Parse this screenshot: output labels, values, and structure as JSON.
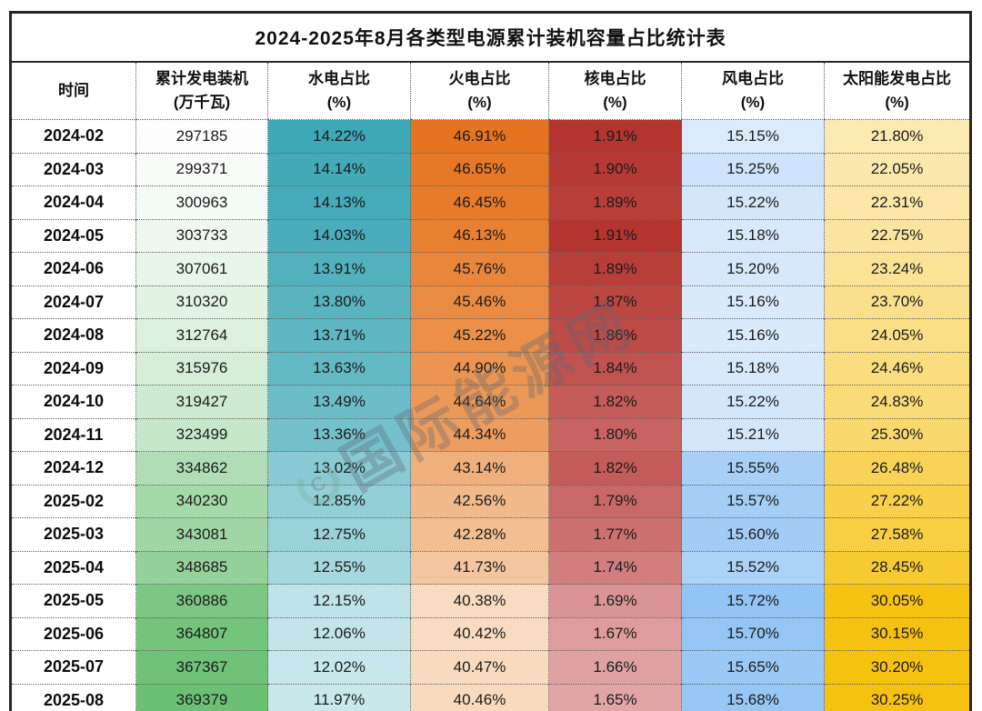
{
  "title": "2024-2025年8月各类型电源累计装机容量占比统计表",
  "watermark": {
    "symbol": "C",
    "text": "国际能源网"
  },
  "columns": [
    {
      "key": "date",
      "label": "时间",
      "sub": ""
    },
    {
      "key": "capacity",
      "label": "累计发电装机",
      "sub": "(万千瓦)"
    },
    {
      "key": "hydro",
      "label": "水电占比",
      "sub": "(%)"
    },
    {
      "key": "thermal",
      "label": "火电占比",
      "sub": "(%)"
    },
    {
      "key": "nuclear",
      "label": "核电占比",
      "sub": "(%)"
    },
    {
      "key": "wind",
      "label": "风电占比",
      "sub": "(%)"
    },
    {
      "key": "solar",
      "label": "太阳能发电占比",
      "sub": "(%)"
    }
  ],
  "color_scales": {
    "capacity": {
      "min": 297185,
      "max": 369379,
      "color_low": "#fcfdfc",
      "color_high": "#6bc073"
    },
    "hydro": {
      "min": 11.97,
      "max": 14.22,
      "color_low": "#c9e8ec",
      "color_high": "#3fa8b6"
    },
    "thermal": {
      "min": 40.38,
      "max": 46.91,
      "color_low": "#f8dcc1",
      "color_high": "#e6741f"
    },
    "nuclear": {
      "min": 1.65,
      "max": 1.91,
      "color_low": "#e2a5a7",
      "color_high": "#b43530"
    },
    "wind": {
      "min": 15.15,
      "max": 15.72,
      "color_low": "#dcebfb",
      "color_high": "#92c4f5"
    },
    "solar": {
      "min": 21.8,
      "max": 30.25,
      "color_low": "#fbe9b2",
      "color_high": "#f6c20f"
    }
  },
  "chart_data": {
    "type": "table",
    "title": "2024-2025年8月各类型电源累计装机容量占比统计表",
    "categories": [
      "2024-02",
      "2024-03",
      "2024-04",
      "2024-05",
      "2024-06",
      "2024-07",
      "2024-08",
      "2024-09",
      "2024-10",
      "2024-11",
      "2024-12",
      "2025-02",
      "2025-03",
      "2025-04",
      "2025-05",
      "2025-06",
      "2025-07",
      "2025-08"
    ],
    "series": [
      {
        "name": "累计发电装机(万千瓦)",
        "values": [
          297185,
          299371,
          300963,
          303733,
          307061,
          310320,
          312764,
          315976,
          319427,
          323499,
          334862,
          340230,
          343081,
          348685,
          360886,
          364807,
          367367,
          369379
        ]
      },
      {
        "name": "水电占比(%)",
        "values": [
          14.22,
          14.14,
          14.13,
          14.03,
          13.91,
          13.8,
          13.71,
          13.63,
          13.49,
          13.36,
          13.02,
          12.85,
          12.75,
          12.55,
          12.15,
          12.06,
          12.02,
          11.97
        ]
      },
      {
        "name": "火电占比(%)",
        "values": [
          46.91,
          46.65,
          46.45,
          46.13,
          45.76,
          45.46,
          45.22,
          44.9,
          44.64,
          44.34,
          43.14,
          42.56,
          42.28,
          41.73,
          40.38,
          40.42,
          40.47,
          40.46
        ]
      },
      {
        "name": "核电占比(%)",
        "values": [
          1.91,
          1.9,
          1.89,
          1.91,
          1.89,
          1.87,
          1.86,
          1.84,
          1.82,
          1.8,
          1.82,
          1.79,
          1.77,
          1.74,
          1.69,
          1.67,
          1.66,
          1.65
        ]
      },
      {
        "name": "风电占比(%)",
        "values": [
          15.15,
          15.25,
          15.22,
          15.18,
          15.2,
          15.16,
          15.16,
          15.18,
          15.22,
          15.21,
          15.55,
          15.57,
          15.6,
          15.52,
          15.72,
          15.7,
          15.65,
          15.68
        ]
      },
      {
        "name": "太阳能发电占比(%)",
        "values": [
          21.8,
          22.05,
          22.31,
          22.75,
          23.24,
          23.7,
          24.05,
          24.46,
          24.83,
          25.3,
          26.48,
          27.22,
          27.58,
          28.45,
          30.05,
          30.15,
          30.2,
          30.25
        ]
      }
    ]
  }
}
